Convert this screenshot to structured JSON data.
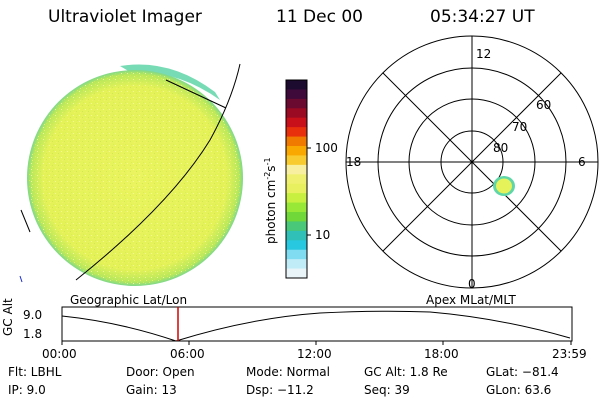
{
  "header": {
    "title": "Ultraviolet Imager",
    "date": "11 Dec 00",
    "time": "05:34:27 UT"
  },
  "labels": {
    "geo_panel": "Geographic Lat/Lon",
    "apex_panel": "Apex MLat/MLT"
  },
  "colorbar": {
    "unit_label": "photon cm",
    "unit_exp1": "-2",
    "unit_mid": "s",
    "unit_exp2": "-1",
    "tick_100": "100",
    "tick_10": "10",
    "colors": [
      "#1c0b2e",
      "#3d0a3a",
      "#6b0a30",
      "#9a0a22",
      "#c8101a",
      "#e8300c",
      "#f07a00",
      "#f8a800",
      "#f8cc30",
      "#f8f0a0",
      "#f0f070",
      "#e8f060",
      "#c8f040",
      "#98e838",
      "#70d838",
      "#48c878",
      "#30c0b8",
      "#28c8e0",
      "#80dcf0",
      "#c0ecf8",
      "#e8f4f8"
    ]
  },
  "polar": {
    "mlt_top": "12",
    "mlt_bottom": "0",
    "mlt_left": "18",
    "mlt_right": "6",
    "lat_60": "60",
    "lat_70": "70",
    "lat_80": "80"
  },
  "timeline": {
    "axis_label": "GC Alt",
    "y_top": "9.0",
    "y_bottom": "1.8",
    "ticks": [
      "00:00",
      "06:00",
      "12:00",
      "18:00",
      "23:59"
    ]
  },
  "info": {
    "flt": "Flt: LBHL",
    "ip": "IP:  9.0",
    "door": "Door: Open",
    "gain": "Gain: 13",
    "mode": "Mode: Normal",
    "dsp": "Dsp:  −11.2",
    "gcalt": "GC Alt: 1.8 Re",
    "seq": "Seq: 39",
    "glat": "GLat: −81.4",
    "glon": "GLon:  63.6"
  },
  "colors": {
    "disk_fill": "#e6f25a",
    "disk_edge": "#9fe05a",
    "limb_glow": "#5fd6a8",
    "marker": "#d40000"
  }
}
